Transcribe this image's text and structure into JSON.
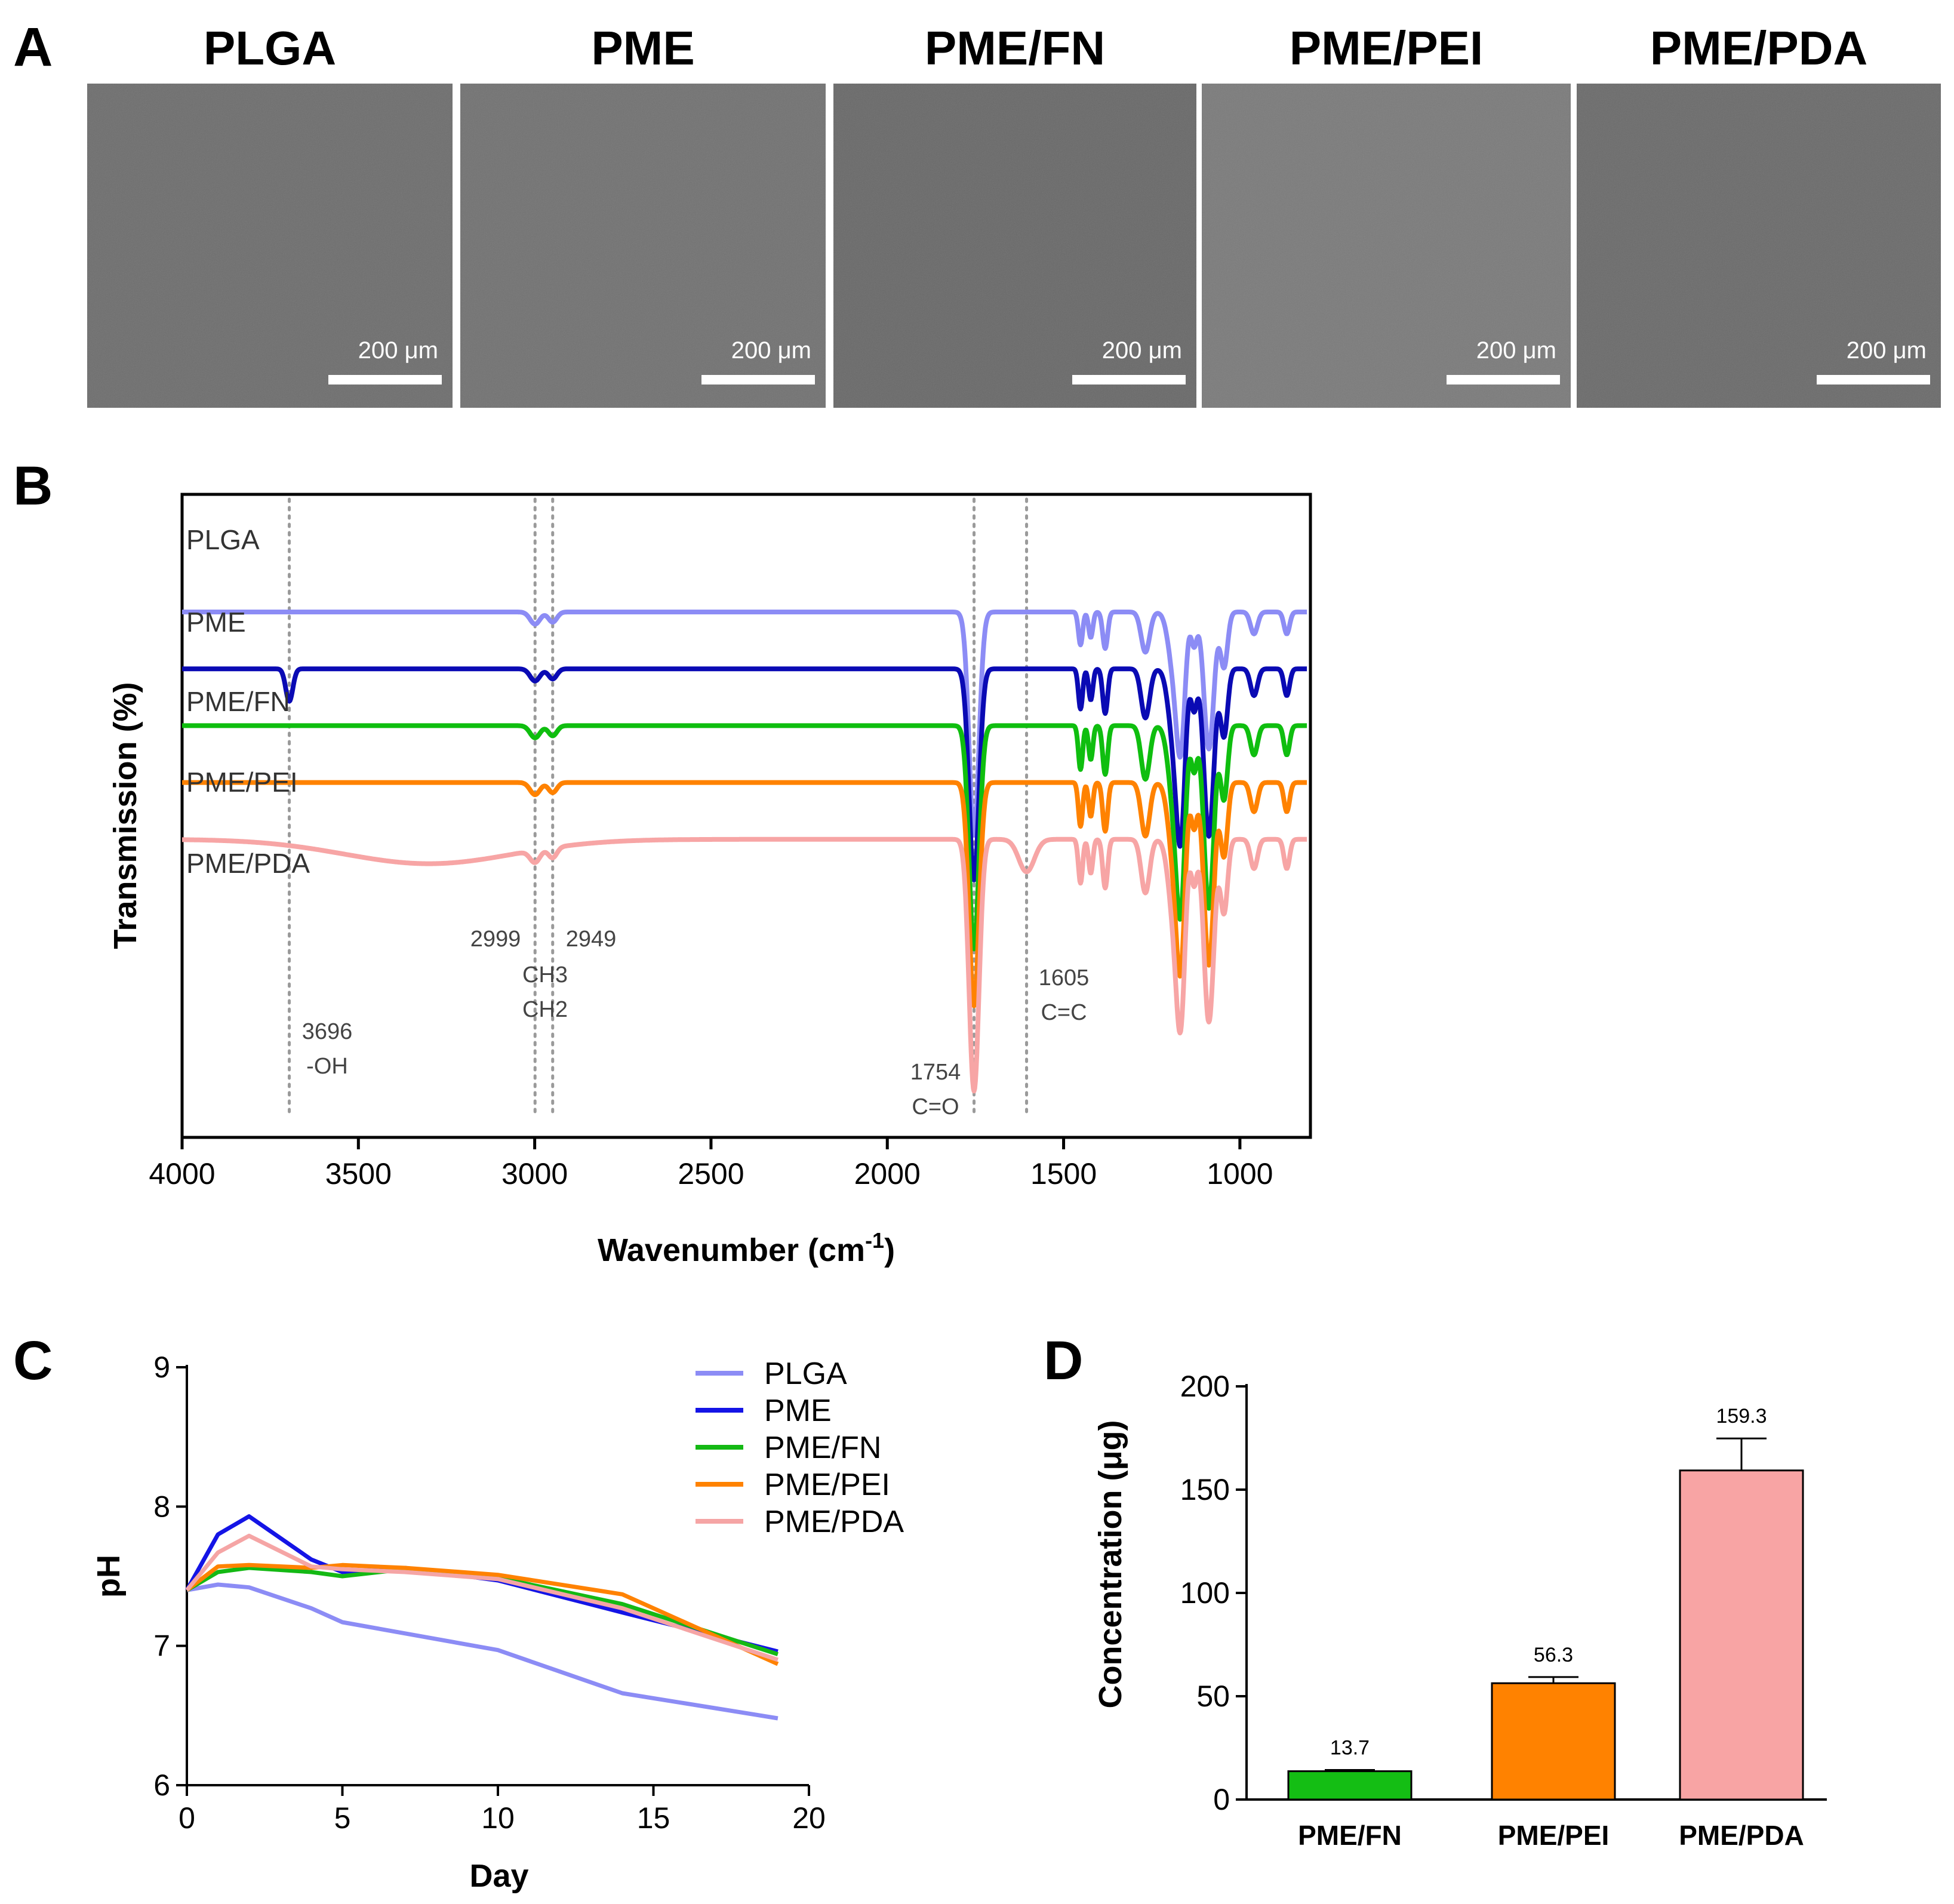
{
  "panel_letters": {
    "a": "A",
    "b": "B",
    "c": "C",
    "d": "D"
  },
  "sem_panels": [
    {
      "title": "PLGA",
      "scale_bar": "200 μm",
      "tone": "#6d6d6d"
    },
    {
      "title": "PME",
      "scale_bar": "200 μm",
      "tone": "#717171"
    },
    {
      "title": "PME/FN",
      "scale_bar": "200 μm",
      "tone": "#686868"
    },
    {
      "title": "PME/PEI",
      "scale_bar": "200 μm",
      "tone": "#7a7a7a"
    },
    {
      "title": "PME/PDA",
      "scale_bar": "200 μm",
      "tone": "#6a6a6a"
    }
  ],
  "chart_data": [
    {
      "type": "line",
      "panel": "B",
      "title": "",
      "xlabel": "Wavenumber (cm",
      "xlabel_superscript": "-1",
      "xlabel_close": ")",
      "ylabel": "Transmission  (%)",
      "xlim": [
        4000,
        800
      ],
      "x_ticks": [
        4000,
        3500,
        3000,
        2500,
        2000,
        1500,
        1000
      ],
      "series": [
        {
          "name": "PLGA",
          "color": "#8c8cf5",
          "baseline": 1.0,
          "oh": 0,
          "co": 0.55,
          "cc": 0,
          "fp": 0.45
        },
        {
          "name": "PME",
          "color": "#0a0ab4",
          "baseline": 0.86,
          "oh": 0.08,
          "co": 0.52,
          "cc": 0,
          "fp": 0.55
        },
        {
          "name": "PME/FN",
          "color": "#0fbe0f",
          "baseline": 0.72,
          "oh": 0,
          "co": 0.55,
          "cc": 0,
          "fp": 0.6
        },
        {
          "name": "PME/PEI",
          "color": "#ff8200",
          "baseline": 0.58,
          "oh": 0,
          "co": 0.55,
          "cc": 0,
          "fp": 0.6
        },
        {
          "name": "PME/PDA",
          "color": "#f7a5a5",
          "baseline": 0.44,
          "oh": 0,
          "co": 0.62,
          "cc": 0.08,
          "fp": 0.6
        }
      ],
      "annotations": [
        {
          "x": 3696,
          "lines": [
            "3696",
            "-OH"
          ]
        },
        {
          "x": 2999,
          "lines": [
            "2999"
          ]
        },
        {
          "x": 2949,
          "lines": [
            "2949"
          ]
        },
        {
          "x": 2975,
          "lines": [
            "CH3",
            "CH2"
          ]
        },
        {
          "x": 1754,
          "lines": [
            "1754",
            "C=O"
          ]
        },
        {
          "x": 1605,
          "lines": [
            "1605",
            "C=C"
          ]
        }
      ],
      "reference_lines": [
        3696,
        2999,
        2949,
        1754,
        1605
      ]
    },
    {
      "type": "line",
      "panel": "C",
      "xlabel": "Day",
      "ylabel": "pH",
      "xlim": [
        0,
        20
      ],
      "ylim": [
        6,
        9
      ],
      "x_ticks": [
        0,
        5,
        10,
        15,
        20
      ],
      "y_ticks": [
        6,
        7,
        8,
        9
      ],
      "legend": "top-right",
      "series": [
        {
          "name": "PLGA",
          "color": "#8c8cf5",
          "x": [
            0,
            1,
            2,
            4,
            5,
            7,
            10,
            14,
            19
          ],
          "y": [
            7.4,
            7.44,
            7.42,
            7.27,
            7.17,
            7.09,
            6.97,
            6.66,
            6.48
          ]
        },
        {
          "name": "PME",
          "color": "#1414e6",
          "x": [
            0,
            1,
            2,
            4,
            5,
            7,
            10,
            14,
            19
          ],
          "y": [
            7.4,
            7.8,
            7.93,
            7.62,
            7.53,
            7.56,
            7.47,
            7.24,
            6.96
          ]
        },
        {
          "name": "PME/FN",
          "color": "#14b914",
          "x": [
            0,
            1,
            2,
            4,
            5,
            7,
            10,
            14,
            19
          ],
          "y": [
            7.4,
            7.53,
            7.56,
            7.53,
            7.5,
            7.55,
            7.49,
            7.3,
            6.94
          ]
        },
        {
          "name": "PME/PEI",
          "color": "#ff8200",
          "x": [
            0,
            1,
            2,
            4,
            5,
            7,
            10,
            14,
            19
          ],
          "y": [
            7.4,
            7.57,
            7.58,
            7.56,
            7.58,
            7.56,
            7.51,
            7.37,
            6.87
          ]
        },
        {
          "name": "PME/PDA",
          "color": "#f5a5a5",
          "x": [
            0,
            1,
            2,
            4,
            5,
            7,
            10,
            14,
            19
          ],
          "y": [
            7.4,
            7.67,
            7.79,
            7.57,
            7.55,
            7.53,
            7.48,
            7.27,
            6.9
          ]
        }
      ]
    },
    {
      "type": "bar",
      "panel": "D",
      "ylabel": "Concentration (μg)",
      "ylim": [
        0,
        200
      ],
      "y_ticks": [
        0,
        50,
        100,
        150,
        200
      ],
      "categories": [
        "PME/FN",
        "PME/PEI",
        "PME/PDA"
      ],
      "values": [
        13.7,
        56.3,
        159.3
      ],
      "errors": [
        0.6,
        3.0,
        15.5
      ],
      "value_labels": [
        "13.7",
        "56.3",
        "159.3"
      ],
      "colors": [
        "#14be14",
        "#ff8200",
        "#f8a4a4"
      ]
    }
  ]
}
